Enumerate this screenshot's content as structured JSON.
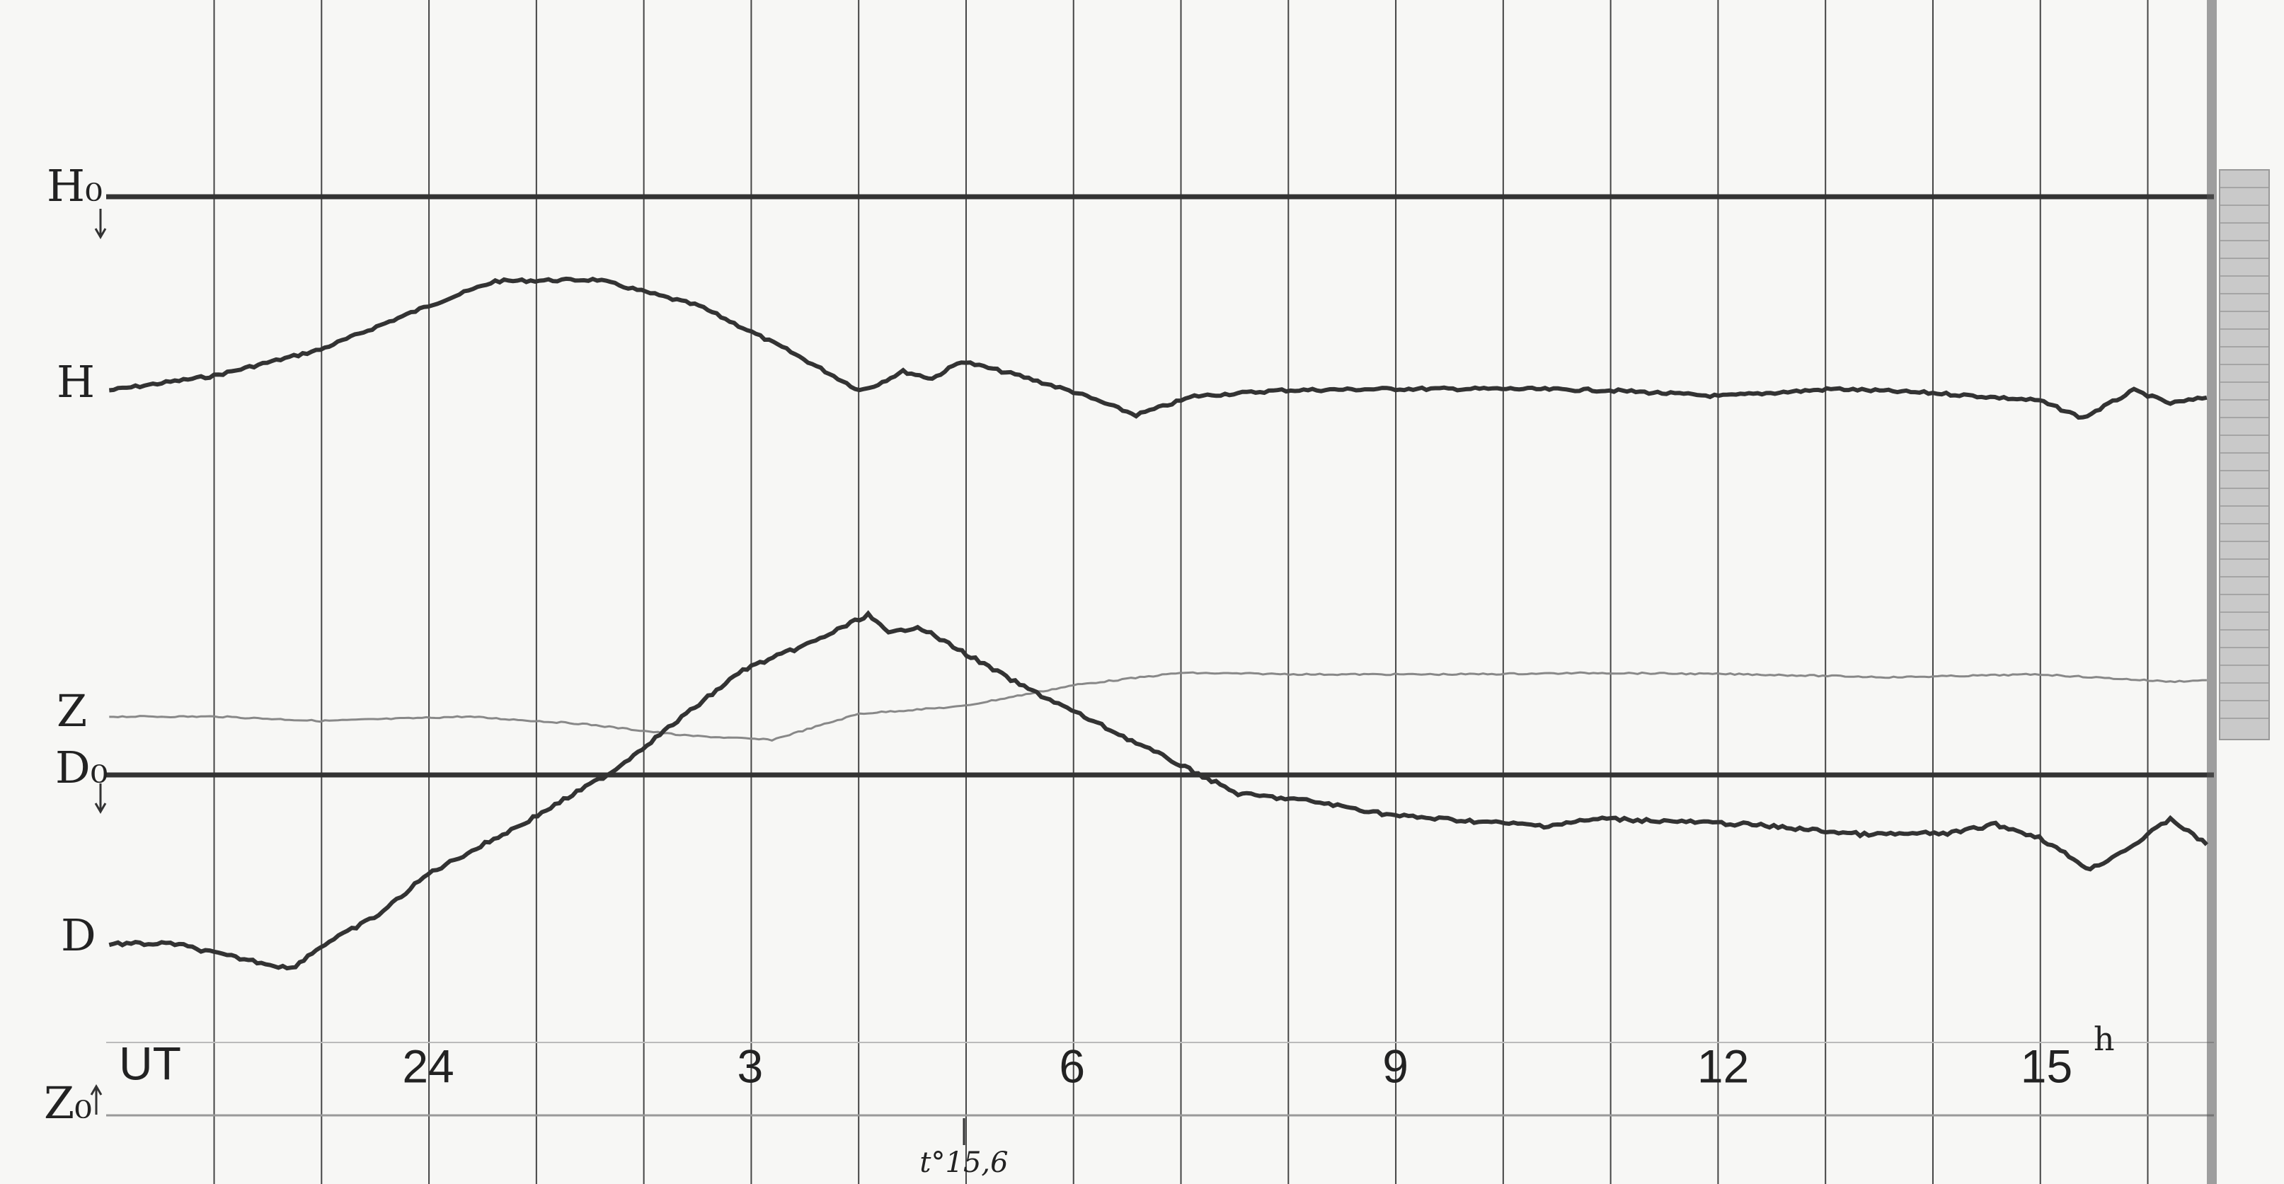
{
  "trace_labels": {
    "h_base": "H₀",
    "h": "H",
    "z": "Z",
    "d_base": "D₀",
    "d": "D",
    "z_base": "Z₀"
  },
  "time_axis": {
    "label": "UT",
    "hours": [
      "24",
      "3",
      "6",
      "9",
      "12",
      "15"
    ],
    "unit": "h"
  },
  "temperature_note": "t°15,6"
}
